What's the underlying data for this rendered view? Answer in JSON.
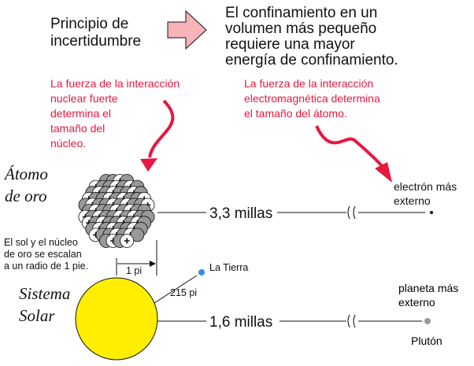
{
  "header": {
    "left": [
      "Principio de",
      "incertidumbre"
    ],
    "right": [
      "El confinamiento en un",
      "volumen más pequeño",
      "requiere una mayor",
      "energía de confinamiento."
    ]
  },
  "notes": {
    "nuclear": [
      "La fuerza de la interacción",
      "nuclear fuerte",
      "determina el",
      "tamaño del",
      "núcleo."
    ],
    "electromagnetic": [
      "La fuerza de la interacción",
      "electromagnética determina",
      "el tamaño del átomo."
    ]
  },
  "atom": {
    "label": [
      "Átomo",
      "de oro"
    ],
    "distance": "3,3 millas",
    "outer": [
      "electrón más",
      "externo"
    ]
  },
  "scale_note": [
    "El sol y el núcleo",
    "de oro se escalan",
    "a un radio de 1 pie."
  ],
  "radius_label": "1 pi",
  "earth_distance": "215 pi",
  "earth": "La Tierra",
  "solar": {
    "label": [
      "Sistema",
      "Solar"
    ],
    "distance": "1,6 millas",
    "outer": [
      "planeta más",
      "externo"
    ],
    "pluto": "Plutón"
  }
}
